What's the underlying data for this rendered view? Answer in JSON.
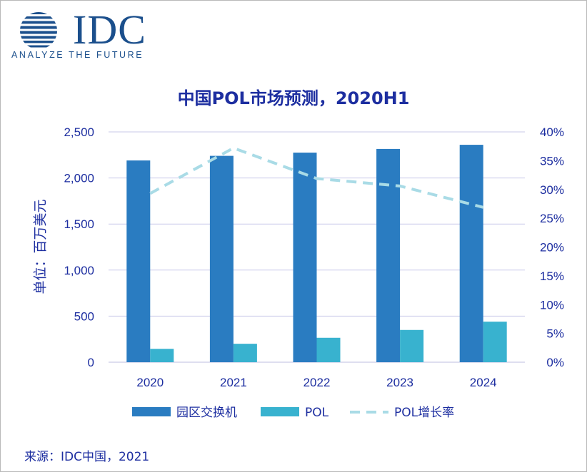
{
  "logo": {
    "word": "IDC",
    "tagline": "ANALYZE THE FUTURE"
  },
  "colors": {
    "switch": "#2a7cc1",
    "pol": "#38b2cf",
    "growth": "#a9dbe6",
    "text": "#1d2ea0",
    "grid": "#c9c9ea"
  },
  "chart_data": {
    "type": "bar",
    "title": "中国POL市场预测，2020H1",
    "ylabel": "单位：百万美元",
    "ylabel_right": "",
    "categories": [
      "2020",
      "2021",
      "2022",
      "2023",
      "2024"
    ],
    "ylim": [
      0,
      2500
    ],
    "yticks": [
      "0",
      "500",
      "1,000",
      "1,500",
      "2,000",
      "2,500"
    ],
    "ylim_right": [
      0,
      40
    ],
    "yticks_right": [
      "0%",
      "5%",
      "10%",
      "15%",
      "20%",
      "25%",
      "30%",
      "35%",
      "40%"
    ],
    "grid": true,
    "legend_position": "bottom",
    "series": [
      {
        "name": "园区交换机",
        "kind": "bar",
        "axis": "left",
        "values": [
          2190,
          2240,
          2275,
          2315,
          2360
        ]
      },
      {
        "name": "POL",
        "kind": "bar",
        "axis": "left",
        "values": [
          145,
          200,
          265,
          350,
          440
        ]
      },
      {
        "name": "POL增长率",
        "kind": "line",
        "style": "dashed",
        "axis": "right",
        "values": [
          29.3,
          37.2,
          31.9,
          30.6,
          26.9
        ]
      }
    ]
  },
  "source": "来源：IDC中国，2021"
}
